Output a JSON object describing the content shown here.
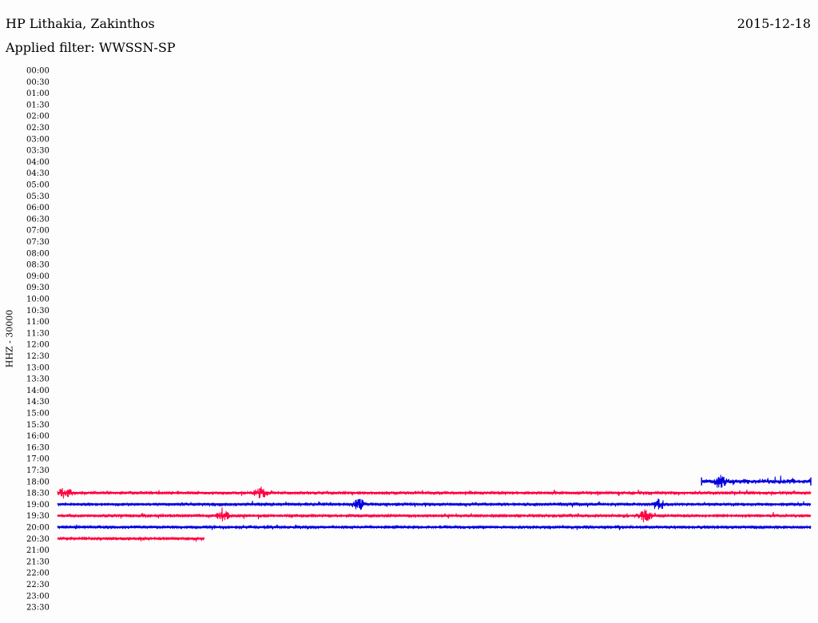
{
  "header": {
    "station": "HP Lithakia, Zakinthos",
    "date": "2015-12-18",
    "filter_label": "Applied filter: WWSSN-SP",
    "channel_label": "HHZ - 30000"
  },
  "colors": {
    "background": "#fdfdfd",
    "trace_a": "#ff0040",
    "trace_b": "#0000e0",
    "text": "#000000"
  },
  "chart_data": {
    "type": "line",
    "title": "HP Lithakia, Zakinthos",
    "subtitle": "Applied filter: WWSSN-SP",
    "ylabel": "HHZ - 30000",
    "y_ticks": [
      "00:00",
      "00:30",
      "01:00",
      "01:30",
      "02:00",
      "02:30",
      "03:00",
      "03:30",
      "04:00",
      "04:30",
      "05:00",
      "05:30",
      "06:00",
      "06:30",
      "07:00",
      "07:30",
      "08:00",
      "08:30",
      "09:00",
      "09:30",
      "10:00",
      "10:30",
      "11:00",
      "11:30",
      "12:00",
      "12:30",
      "13:00",
      "13:30",
      "14:00",
      "14:30",
      "15:00",
      "15:30",
      "16:00",
      "16:30",
      "17:00",
      "17:30",
      "18:00",
      "18:30",
      "19:00",
      "19:30",
      "20:00",
      "20:30",
      "21:00",
      "21:30",
      "22:00",
      "22:30",
      "23:00",
      "23:30"
    ],
    "row_minutes": 30,
    "series": [
      {
        "row": "18:00",
        "start_fraction": 0.855,
        "end_fraction": 1.0,
        "color": "#0000e0",
        "amplitude": "medium",
        "bursts": [
          0.88
        ]
      },
      {
        "row": "18:30",
        "start_fraction": 0.0,
        "end_fraction": 1.0,
        "color": "#ff0040",
        "amplitude": "low",
        "bursts": [
          0.01,
          0.27
        ]
      },
      {
        "row": "19:00",
        "start_fraction": 0.0,
        "end_fraction": 1.0,
        "color": "#0000e0",
        "amplitude": "low",
        "bursts": [
          0.4,
          0.8
        ]
      },
      {
        "row": "19:30",
        "start_fraction": 0.0,
        "end_fraction": 1.0,
        "color": "#ff0040",
        "amplitude": "low",
        "bursts": [
          0.22,
          0.78
        ]
      },
      {
        "row": "20:00",
        "start_fraction": 0.0,
        "end_fraction": 1.0,
        "color": "#0000e0",
        "amplitude": "low",
        "bursts": []
      },
      {
        "row": "20:30",
        "start_fraction": 0.0,
        "end_fraction": 0.195,
        "color": "#ff0040",
        "amplitude": "low",
        "bursts": []
      }
    ]
  }
}
